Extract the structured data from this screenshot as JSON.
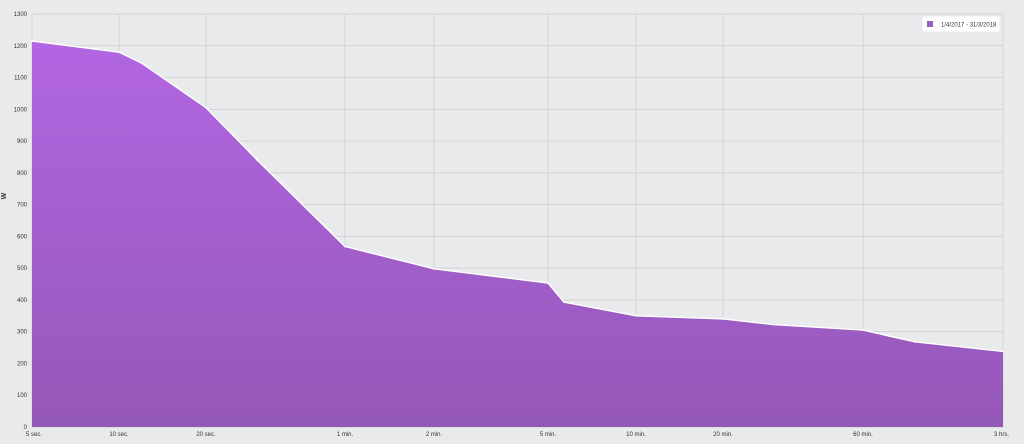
{
  "chart_data": {
    "type": "area",
    "title": "",
    "xlabel": "",
    "ylabel": "W",
    "ylim": [
      0,
      1300
    ],
    "yticks": [
      0,
      100,
      200,
      300,
      400,
      500,
      600,
      700,
      800,
      900,
      1000,
      1100,
      1200,
      1300
    ],
    "xscale": "log",
    "xticks": [
      {
        "label": "5 sec.",
        "seconds": 5
      },
      {
        "label": "10 sec.",
        "seconds": 10
      },
      {
        "label": "20 sec.",
        "seconds": 20
      },
      {
        "label": "1 min.",
        "seconds": 60
      },
      {
        "label": "2 min.",
        "seconds": 120
      },
      {
        "label": "5 min.",
        "seconds": 300
      },
      {
        "label": "10 min.",
        "seconds": 600
      },
      {
        "label": "20 min.",
        "seconds": 1200
      },
      {
        "label": "60 min.",
        "seconds": 3600
      },
      {
        "label": "3 hrs.",
        "seconds": 10800
      }
    ],
    "grid": true,
    "legend_position": "top-right",
    "series": [
      {
        "name": "1/4/2017 - 31/3/2018",
        "color": "#9b5fc0",
        "color_top": "#b266e2",
        "x": [
          5,
          10,
          12,
          20,
          30,
          60,
          120,
          300,
          340,
          600,
          1200,
          1800,
          3600,
          5400,
          10800
        ],
        "values": [
          1215,
          1180,
          1145,
          1005,
          840,
          568,
          498,
          453,
          393,
          350,
          340,
          322,
          305,
          268,
          238
        ]
      }
    ]
  }
}
